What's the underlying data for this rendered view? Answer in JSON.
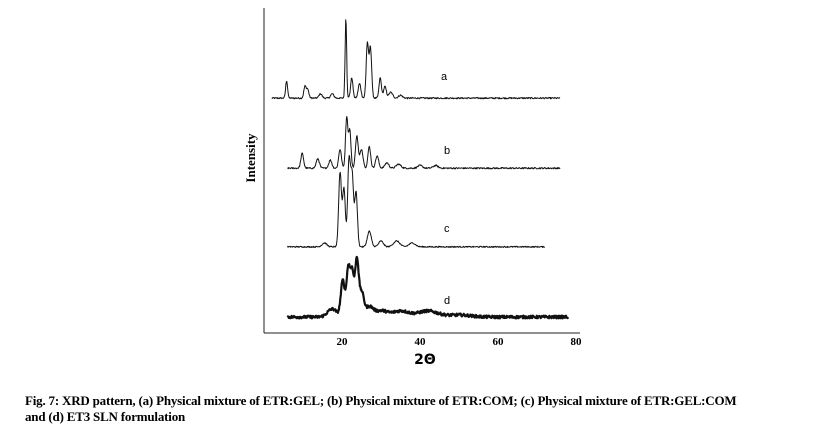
{
  "chart_data": {
    "type": "line",
    "title": "",
    "xlabel": "2Θ",
    "ylabel": "Intensity",
    "xlim": [
      0,
      80
    ],
    "x_ticks": [
      20,
      40,
      60,
      80
    ],
    "grid": false,
    "legend": "none",
    "series": [
      {
        "name": "a",
        "x_start": 2,
        "x_end": 76,
        "baseline": 0.6,
        "peaks": [
          [
            5.8,
            12,
            0.25
          ],
          [
            10.5,
            8,
            0.3
          ],
          [
            11.2,
            6,
            0.3
          ],
          [
            14.5,
            3,
            0.4
          ],
          [
            17.5,
            3,
            0.4
          ],
          [
            21.0,
            55,
            0.2
          ],
          [
            22.5,
            14,
            0.3
          ],
          [
            24.5,
            10,
            0.35
          ],
          [
            26.5,
            38,
            0.3
          ],
          [
            27.3,
            35,
            0.3
          ],
          [
            29.8,
            14,
            0.3
          ],
          [
            31.0,
            8,
            0.35
          ],
          [
            32.5,
            4,
            0.5
          ],
          [
            35.0,
            2,
            0.5
          ]
        ],
        "noise": 1.0
      },
      {
        "name": "b",
        "x_start": 6,
        "x_end": 76,
        "baseline": 0.6,
        "peaks": [
          [
            9.8,
            11,
            0.35
          ],
          [
            13.8,
            7,
            0.4
          ],
          [
            17.0,
            6,
            0.4
          ],
          [
            19.5,
            14,
            0.35
          ],
          [
            21.2,
            38,
            0.3
          ],
          [
            22.0,
            28,
            0.3
          ],
          [
            23.8,
            24,
            0.35
          ],
          [
            25.0,
            14,
            0.4
          ],
          [
            27.0,
            16,
            0.35
          ],
          [
            29.0,
            9,
            0.4
          ],
          [
            31.5,
            4,
            0.5
          ],
          [
            34.5,
            3,
            0.6
          ],
          [
            40.0,
            2,
            0.6
          ],
          [
            44.0,
            2,
            0.6
          ]
        ],
        "noise": 1.1
      },
      {
        "name": "c",
        "x_start": 6,
        "x_end": 72,
        "baseline": 0.6,
        "peaks": [
          [
            15.5,
            2,
            0.6
          ],
          [
            19.5,
            38,
            0.35
          ],
          [
            20.5,
            30,
            0.35
          ],
          [
            21.8,
            44,
            0.35
          ],
          [
            22.6,
            36,
            0.35
          ],
          [
            23.6,
            28,
            0.35
          ],
          [
            27.0,
            8,
            0.5
          ],
          [
            30.0,
            3,
            0.6
          ],
          [
            34.0,
            3,
            0.8
          ],
          [
            38.0,
            2,
            0.8
          ]
        ],
        "noise": 0.6
      },
      {
        "name": "d",
        "x_start": 6,
        "x_end": 78,
        "baseline": 2.0,
        "peaks": [
          [
            17.5,
            4,
            1.2
          ],
          [
            20.2,
            18,
            0.5
          ],
          [
            21.6,
            24,
            0.45
          ],
          [
            22.6,
            22,
            0.45
          ],
          [
            23.8,
            28,
            0.45
          ],
          [
            25.0,
            12,
            0.6
          ],
          [
            27.0,
            5,
            1.0
          ],
          [
            30.0,
            3,
            1.5
          ],
          [
            35.0,
            3,
            2.2
          ],
          [
            42.0,
            3,
            2.5
          ],
          [
            50.0,
            1,
            3.0
          ]
        ],
        "noise": 1.4
      }
    ]
  },
  "caption": {
    "line1": "Fig. 7: XRD pattern, (a) Physical mixture of ETR:GEL; (b) Physical mixture of ETR:COM; (c) Physical mixture of  ETR:GEL:COM",
    "line2": "and (d) ET3 SLN formulation"
  }
}
